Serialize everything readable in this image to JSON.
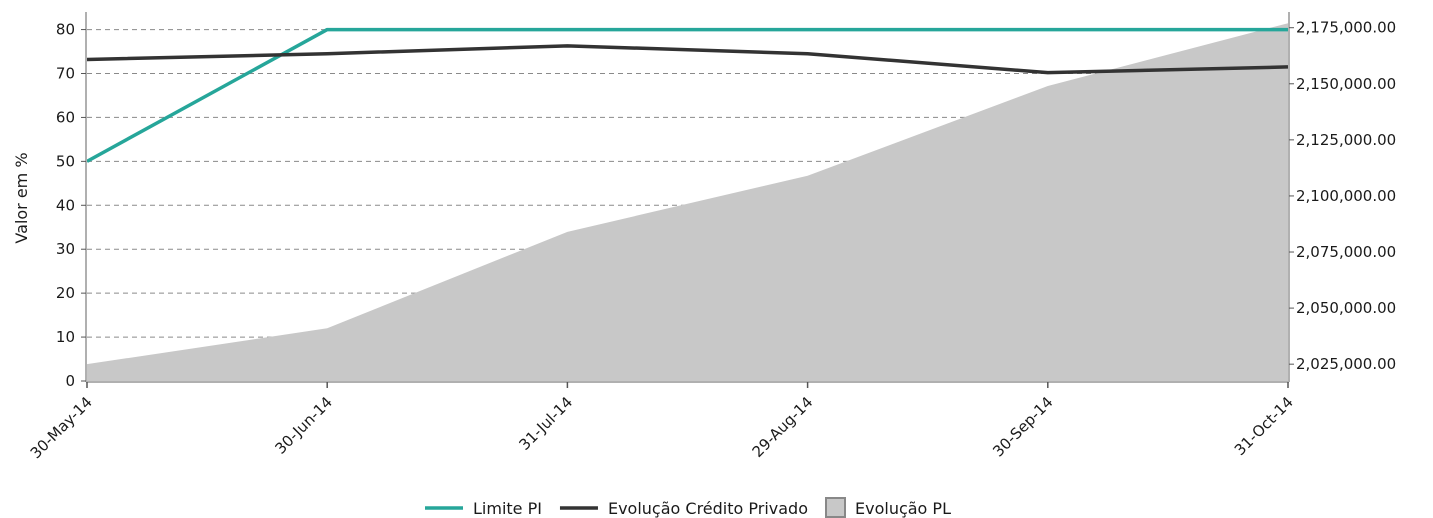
{
  "chart_data": {
    "type": "line",
    "categories": [
      "30-May-14",
      "30-Jun-14",
      "31-Jul-14",
      "29-Aug-14",
      "30-Sep-14",
      "31-Oct-14"
    ],
    "y_left": {
      "label": "Valor em %",
      "range": [
        0,
        84
      ],
      "ticks": [
        0,
        10,
        20,
        30,
        40,
        50,
        60,
        70,
        80
      ]
    },
    "y_right": {
      "label": "",
      "range": [
        2017500,
        2182000
      ],
      "ticks": [
        2025000,
        2050000,
        2075000,
        2100000,
        2125000,
        2150000,
        2175000
      ],
      "tick_labels": [
        "2,025,000.00",
        "2,050,000.00",
        "2,075,000.00",
        "2,100,000.00",
        "2,125,000.00",
        "2,150,000.00",
        "2,175,000.00"
      ]
    },
    "grid": "horizontal dashed",
    "legend_position": "bottom-center",
    "series": [
      {
        "name": "Limite PI",
        "type": "line",
        "axis": "left",
        "color": "#26a69a",
        "values": [
          50,
          80,
          80,
          80,
          80,
          80
        ]
      },
      {
        "name": "Evolução Crédito Privado",
        "type": "line",
        "axis": "left",
        "color": "#333333",
        "values": [
          73.2,
          74.5,
          76.3,
          74.5,
          70.2,
          71.5
        ]
      },
      {
        "name": "Evolução PL",
        "type": "area",
        "axis": "right",
        "color": "#c8c8c8",
        "values": [
          2025000,
          2041000,
          2084000,
          2109000,
          2149000,
          2177000
        ]
      }
    ]
  }
}
